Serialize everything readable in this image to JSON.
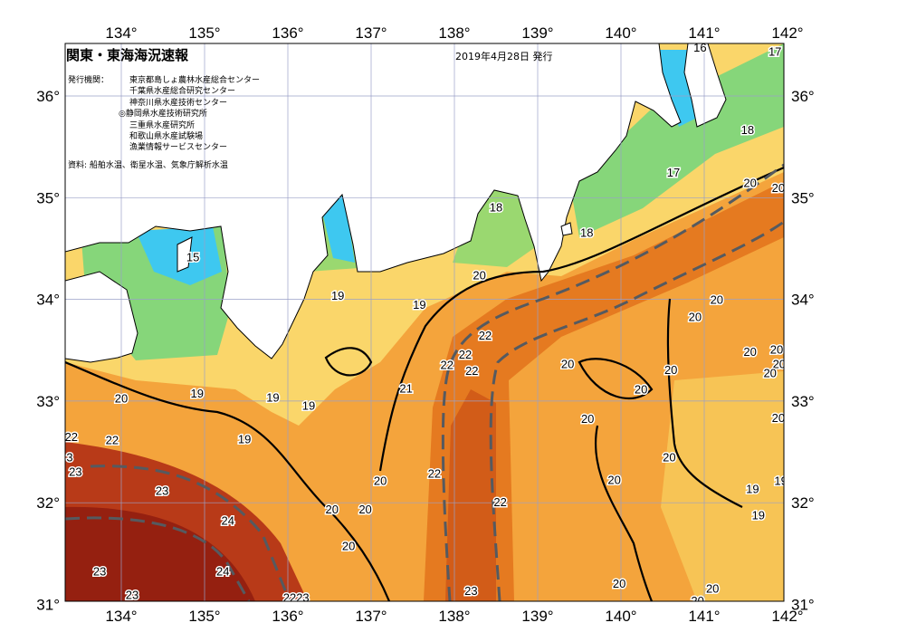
{
  "header": {
    "title": "関東・東海海況速報",
    "date": "2019年4月28日 発行",
    "issuer_label": "発行機関：",
    "issuers": [
      "東京都島しょ農林水産総合センター",
      "千葉県水産総合研究センター",
      "神奈川県水産技術センター",
      "◎静岡県水産技術研究所",
      "三重県水産研究所",
      "和歌山県水産試験場",
      "漁業情報サービスセンター"
    ],
    "source": "資料: 船舶水温、衛星水温、気象庁解析水温"
  },
  "map": {
    "type": "sea surface temperature contour map",
    "lon_range": [
      133.35,
      142
    ],
    "lat_range": [
      31,
      36.5
    ],
    "lon_ticks": [
      "134°",
      "135°",
      "136°",
      "137°",
      "138°",
      "139°",
      "140°",
      "141°",
      "142°"
    ],
    "lat_ticks": [
      "36°",
      "35°",
      "34°",
      "33°",
      "32°",
      "31°"
    ],
    "colors": {
      "land": "#ffffff",
      "cold": "#3ec8f0",
      "green": "#86d67a",
      "yellow": "#fad66a",
      "orange": "#f4a43c",
      "kuroshio": "#e57a20",
      "warm": "#b83a18",
      "hot": "#952010",
      "grid": "#9aa0c8"
    },
    "contour_labels": [
      {
        "t": "16",
        "lon": 140.95,
        "lat": 36.48
      },
      {
        "t": "17",
        "lon": 141.85,
        "lat": 36.44
      },
      {
        "t": "18",
        "lon": 141.52,
        "lat": 35.67
      },
      {
        "t": "17",
        "lon": 140.63,
        "lat": 35.25
      },
      {
        "t": "20",
        "lon": 141.55,
        "lat": 35.15
      },
      {
        "t": "20",
        "lon": 141.89,
        "lat": 35.1
      },
      {
        "t": "18",
        "lon": 138.5,
        "lat": 34.91
      },
      {
        "t": "18",
        "lon": 139.59,
        "lat": 34.66
      },
      {
        "t": "15",
        "lon": 134.86,
        "lat": 34.42
      },
      {
        "t": "20",
        "lon": 138.3,
        "lat": 34.24
      },
      {
        "t": "19",
        "lon": 136.6,
        "lat": 34.04
      },
      {
        "t": "19",
        "lon": 137.58,
        "lat": 33.95
      },
      {
        "t": "20",
        "lon": 141.15,
        "lat": 34.0
      },
      {
        "t": "20",
        "lon": 140.89,
        "lat": 33.83
      },
      {
        "t": "22",
        "lon": 138.37,
        "lat": 33.65
      },
      {
        "t": "20",
        "lon": 141.55,
        "lat": 33.49
      },
      {
        "t": "20",
        "lon": 141.87,
        "lat": 33.51
      },
      {
        "t": "22",
        "lon": 138.13,
        "lat": 33.46
      },
      {
        "t": "22",
        "lon": 137.91,
        "lat": 33.36
      },
      {
        "t": "22",
        "lon": 138.21,
        "lat": 33.3
      },
      {
        "t": "20",
        "lon": 139.36,
        "lat": 33.37
      },
      {
        "t": "20",
        "lon": 140.6,
        "lat": 33.31
      },
      {
        "t": "20",
        "lon": 141.9,
        "lat": 33.37
      },
      {
        "t": "20",
        "lon": 141.79,
        "lat": 33.28
      },
      {
        "t": "21",
        "lon": 137.42,
        "lat": 33.13
      },
      {
        "t": "19",
        "lon": 134.91,
        "lat": 33.08
      },
      {
        "t": "20",
        "lon": 134.0,
        "lat": 33.03
      },
      {
        "t": "20",
        "lon": 140.24,
        "lat": 33.12
      },
      {
        "t": "19",
        "lon": 135.82,
        "lat": 33.04
      },
      {
        "t": "19",
        "lon": 136.25,
        "lat": 32.96
      },
      {
        "t": "20",
        "lon": 139.6,
        "lat": 32.83
      },
      {
        "t": "20",
        "lon": 141.89,
        "lat": 32.84
      },
      {
        "t": "22",
        "lon": 133.4,
        "lat": 32.65
      },
      {
        "t": "22",
        "lon": 133.89,
        "lat": 32.62
      },
      {
        "t": "19",
        "lon": 135.48,
        "lat": 32.63
      },
      {
        "t": "20",
        "lon": 140.58,
        "lat": 32.45
      },
      {
        "t": "3",
        "lon": 133.38,
        "lat": 32.45
      },
      {
        "t": "23",
        "lon": 133.45,
        "lat": 32.31
      },
      {
        "t": "22",
        "lon": 137.76,
        "lat": 32.29
      },
      {
        "t": "20",
        "lon": 137.11,
        "lat": 32.22
      },
      {
        "t": "20",
        "lon": 139.92,
        "lat": 32.23
      },
      {
        "t": "23",
        "lon": 134.49,
        "lat": 32.12
      },
      {
        "t": "19",
        "lon": 141.58,
        "lat": 32.14
      },
      {
        "t": "19",
        "lon": 141.92,
        "lat": 32.22
      },
      {
        "t": "20",
        "lon": 136.93,
        "lat": 31.94
      },
      {
        "t": "20",
        "lon": 136.53,
        "lat": 31.94
      },
      {
        "t": "22",
        "lon": 138.55,
        "lat": 32.01
      },
      {
        "t": "19",
        "lon": 141.65,
        "lat": 31.88
      },
      {
        "t": "24",
        "lon": 135.28,
        "lat": 31.83
      },
      {
        "t": "20",
        "lon": 136.73,
        "lat": 31.58
      },
      {
        "t": "23",
        "lon": 133.74,
        "lat": 31.33
      },
      {
        "t": "24",
        "lon": 135.22,
        "lat": 31.33
      },
      {
        "t": "20",
        "lon": 139.98,
        "lat": 31.21
      },
      {
        "t": "23",
        "lon": 134.13,
        "lat": 31.1
      },
      {
        "t": "2223",
        "lon": 136.1,
        "lat": 31.07
      },
      {
        "t": "23",
        "lon": 138.2,
        "lat": 31.14
      },
      {
        "t": "20",
        "lon": 141.1,
        "lat": 31.16
      },
      {
        "t": "20",
        "lon": 140.92,
        "lat": 31.04
      }
    ]
  }
}
